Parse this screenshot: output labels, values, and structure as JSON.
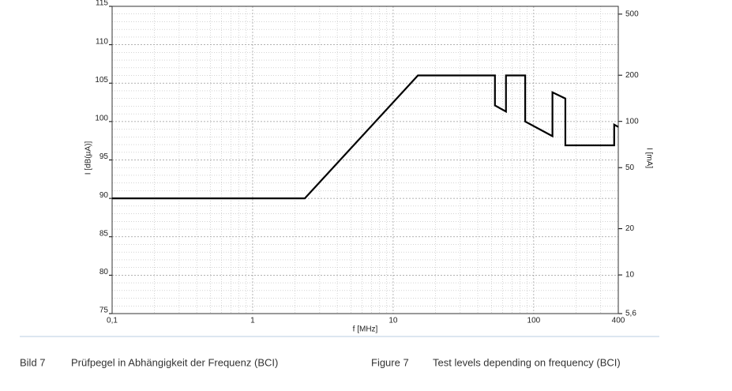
{
  "chart_data": {
    "type": "line",
    "xlabel": "f [MHz]",
    "ylabel": "I [dB(µA)]",
    "y2label": "I [mA]",
    "x": [
      0.1,
      2.35,
      15,
      53,
      53,
      63.5,
      63.5,
      87,
      87,
      136,
      136,
      168,
      168,
      374,
      374,
      400
    ],
    "series": [
      {
        "name": "Test level",
        "color": "#000000",
        "values": [
          90,
          90,
          106,
          106,
          102.1,
          101.3,
          106,
          106,
          100,
          98.1,
          103.8,
          103,
          96.9,
          96.9,
          99.6,
          99.3
        ]
      }
    ],
    "xscale": "log",
    "xlim": [
      0.1,
      400
    ],
    "xticks": [
      {
        "value": 0.1,
        "label": "0,1"
      },
      1,
      10,
      100,
      400
    ],
    "xminorticks": [
      0.2,
      0.3,
      0.4,
      0.5,
      0.6,
      0.7,
      0.8,
      0.9,
      2,
      3,
      4,
      5,
      6,
      7,
      8,
      9,
      20,
      30,
      40,
      50,
      60,
      70,
      80,
      90,
      200,
      300
    ],
    "ylim": [
      75,
      115
    ],
    "yticks": [
      75,
      80,
      85,
      90,
      95,
      100,
      105,
      110,
      115
    ],
    "yminorticks": [
      76,
      77,
      78,
      79,
      81,
      82,
      83,
      84,
      86,
      87,
      88,
      89,
      91,
      92,
      93,
      94,
      96,
      97,
      98,
      99,
      101,
      102,
      103,
      104,
      106,
      107,
      108,
      109,
      111,
      112,
      113,
      114
    ],
    "y2scale": "log",
    "y2lim": [
      5.6,
      562
    ],
    "y2ticks": [
      {
        "value": 5.6,
        "label": "5,6"
      },
      10,
      20,
      50,
      100,
      200,
      500
    ],
    "grid": true
  },
  "captions": {
    "de_label": "Bild 7",
    "de_text": "Prüfpegel in Abhängigkeit der Frequenz (BCI)",
    "en_label": "Figure 7",
    "en_text": "Test levels depending on frequency (BCI)"
  }
}
